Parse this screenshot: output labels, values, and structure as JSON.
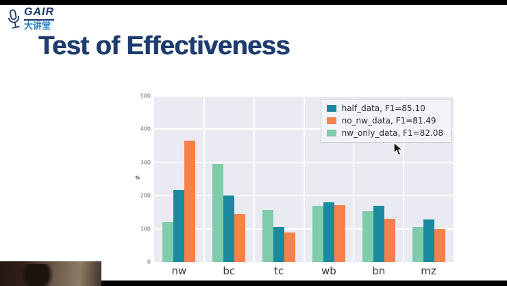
{
  "page": {
    "background": "#ffffff",
    "letterbox_color": "#000000"
  },
  "logo": {
    "brand": "GAIR",
    "subtitle": "大讲堂",
    "brand_color": "#16386e",
    "subtitle_color": "#1d7fc6"
  },
  "slide": {
    "title": "Test of Effectiveness",
    "title_color": "#1e3c6e"
  },
  "chart_data": {
    "type": "bar",
    "categories": [
      "nw",
      "bc",
      "tc",
      "wb",
      "bn",
      "mz"
    ],
    "series": [
      {
        "name": "nw_only_data",
        "color": "#7fccab",
        "values": [
          120,
          295,
          158,
          170,
          153,
          105
        ]
      },
      {
        "name": "half_data",
        "color": "#1b8a9f",
        "values": [
          218,
          200,
          105,
          180,
          170,
          128
        ]
      },
      {
        "name": "no_nw_data",
        "color": "#f5824d",
        "values": [
          365,
          145,
          88,
          172,
          130,
          100
        ]
      }
    ],
    "legend": [
      {
        "label": "half_data, F1=85.10",
        "color": "#1b8a9f"
      },
      {
        "label": "no_nw_data, F1=81.49",
        "color": "#f5824d"
      },
      {
        "label": "nw_only_data, F1=82.08",
        "color": "#7fccab"
      }
    ],
    "ylabel": "#",
    "ylim": [
      0,
      500
    ],
    "yticks": [
      0,
      100,
      200,
      300,
      400,
      500
    ],
    "plot_background": "#eaebf2",
    "grid": true,
    "legend_position": "upper right"
  }
}
